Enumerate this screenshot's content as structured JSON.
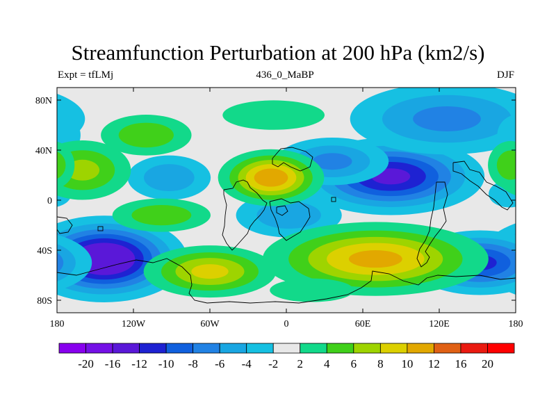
{
  "chart_data": {
    "type": "contour_map",
    "title": "Streamfunction Perturbation at 200 hPa (km2/s)",
    "left_subtitle": "Expt = tfLMj",
    "center_subtitle": "436_0_MaBP",
    "right_subtitle": "DJF",
    "xlim": [
      -180,
      180
    ],
    "ylim": [
      -90,
      90
    ],
    "x_ticks": [
      {
        "value": -180,
        "label": "180"
      },
      {
        "value": -120,
        "label": "120W"
      },
      {
        "value": -60,
        "label": "60W"
      },
      {
        "value": 0,
        "label": "0"
      },
      {
        "value": 60,
        "label": "60E"
      },
      {
        "value": 120,
        "label": "120E"
      },
      {
        "value": 180,
        "label": "180"
      }
    ],
    "y_ticks": [
      {
        "value": 80,
        "label": "80N"
      },
      {
        "value": 40,
        "label": "40N"
      },
      {
        "value": 0,
        "label": "0"
      },
      {
        "value": -40,
        "label": "40S"
      },
      {
        "value": -80,
        "label": "80S"
      }
    ],
    "contour_levels": [
      -20,
      -16,
      -12,
      -10,
      -8,
      -6,
      -4,
      -2,
      2,
      4,
      6,
      8,
      10,
      12,
      16,
      20
    ],
    "level_labels": [
      "-20",
      "-16",
      "-12",
      "-10",
      "-8",
      "-6",
      "-4",
      "-2",
      "2",
      "4",
      "6",
      "8",
      "10",
      "12",
      "16",
      "20"
    ],
    "colors": [
      "#8800ee",
      "#7410e6",
      "#5a18d8",
      "#1e22d2",
      "#1060de",
      "#2182e4",
      "#19a6e2",
      "#16c0e2",
      "#e8e8e8",
      "#12d98a",
      "#40d01a",
      "#9ed400",
      "#dcd000",
      "#e2a800",
      "#e06014",
      "#ea1a10",
      "#ff0000"
    ],
    "field_centers": [
      {
        "lon": -143,
        "lat": -47,
        "value": -16,
        "rx": 32,
        "ry": 17
      },
      {
        "lon": 82,
        "lat": 19,
        "value": -13,
        "rx": 38,
        "ry": 16
      },
      {
        "lon": 152,
        "lat": -50,
        "value": -11,
        "rx": 30,
        "ry": 14
      },
      {
        "lon": 126,
        "lat": 65,
        "value": -7,
        "rx": 48,
        "ry": 18
      },
      {
        "lon": 36,
        "lat": 31,
        "value": -7,
        "rx": 28,
        "ry": 12
      },
      {
        "lon": 2,
        "lat": -12,
        "value": -6,
        "rx": 28,
        "ry": 12
      },
      {
        "lon": -92,
        "lat": 18,
        "value": -6,
        "rx": 22,
        "ry": 12
      },
      {
        "lon": -178,
        "lat": 52,
        "value": -4,
        "rx": 14,
        "ry": 14
      },
      {
        "lon": -165,
        "lat": 10,
        "value": -3,
        "rx": 18,
        "ry": 8
      },
      {
        "lon": 175,
        "lat": 5,
        "value": -3,
        "rx": 18,
        "ry": 12
      },
      {
        "lon": -12,
        "lat": 18,
        "value": 12,
        "rx": 22,
        "ry": 12
      },
      {
        "lon": 70,
        "lat": -47,
        "value": 11,
        "rx": 48,
        "ry": 16
      },
      {
        "lon": -60,
        "lat": -57,
        "value": 9,
        "rx": 30,
        "ry": 12
      },
      {
        "lon": -160,
        "lat": 24,
        "value": 7,
        "rx": 24,
        "ry": 15
      },
      {
        "lon": -110,
        "lat": 52,
        "value": 6,
        "rx": 24,
        "ry": 11
      },
      {
        "lon": -98,
        "lat": -12,
        "value": 6,
        "rx": 26,
        "ry": 9
      },
      {
        "lon": 176,
        "lat": 28,
        "value": 6,
        "rx": 12,
        "ry": 13
      },
      {
        "lon": -10,
        "lat": 68,
        "value": 4,
        "rx": 34,
        "ry": 10
      },
      {
        "lon": 20,
        "lat": -72,
        "value": 4,
        "rx": 28,
        "ry": 8
      }
    ]
  }
}
